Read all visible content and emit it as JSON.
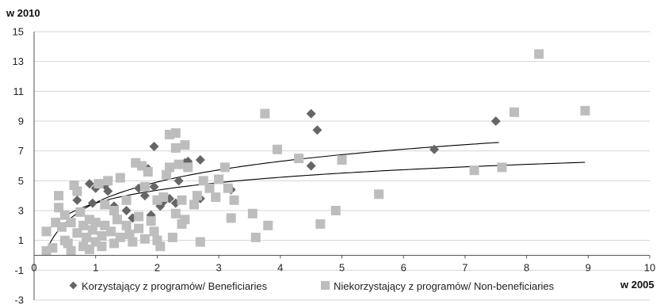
{
  "chart_data": {
    "type": "scatter",
    "ylabel": "w 2010",
    "xlabel": "w 2005",
    "xlim": [
      0,
      10
    ],
    "ylim": [
      -3,
      15
    ],
    "x_ticks": [
      0,
      1,
      2,
      3,
      4,
      5,
      6,
      7,
      8,
      9,
      10
    ],
    "y_ticks": [
      -3,
      -1,
      1,
      3,
      5,
      7,
      9,
      11,
      13,
      15
    ],
    "grid": "horizontal",
    "legend_position": "bottom",
    "colors": {
      "beneficiaries": "#666666",
      "non_beneficiaries": "#bdbdbd",
      "trend": "#000000",
      "grid": "#d4d4d4"
    },
    "series": [
      {
        "name": "Korzystający z programów/ Beneficiaries",
        "marker": "diamond",
        "color": "#666666",
        "points": [
          [
            0.7,
            3.7
          ],
          [
            0.9,
            4.8
          ],
          [
            0.95,
            3.5
          ],
          [
            1.0,
            4.5
          ],
          [
            1.1,
            4.8
          ],
          [
            1.15,
            4.7
          ],
          [
            1.2,
            4.3
          ],
          [
            1.3,
            3.3
          ],
          [
            1.5,
            3.0
          ],
          [
            1.6,
            2.5
          ],
          [
            1.7,
            4.5
          ],
          [
            1.8,
            4.0
          ],
          [
            1.85,
            5.8
          ],
          [
            1.9,
            2.7
          ],
          [
            1.95,
            4.6
          ],
          [
            1.95,
            7.3
          ],
          [
            2.05,
            3.3
          ],
          [
            2.1,
            3.6
          ],
          [
            2.2,
            3.8
          ],
          [
            2.3,
            3.5
          ],
          [
            2.35,
            5.0
          ],
          [
            2.45,
            6.2
          ],
          [
            2.5,
            6.3
          ],
          [
            2.7,
            6.4
          ],
          [
            2.7,
            3.8
          ],
          [
            3.2,
            4.4
          ],
          [
            4.5,
            9.5
          ],
          [
            4.5,
            6.0
          ],
          [
            4.6,
            8.4
          ],
          [
            6.5,
            7.1
          ],
          [
            7.5,
            9.0
          ]
        ]
      },
      {
        "name": "Niekorzystający z programów/ Non-beneficiaries",
        "marker": "square",
        "color": "#bdbdbd",
        "points": [
          [
            0.2,
            1.6
          ],
          [
            0.2,
            0.3
          ],
          [
            0.3,
            0.5
          ],
          [
            0.35,
            2.2
          ],
          [
            0.4,
            4.0
          ],
          [
            0.4,
            3.2
          ],
          [
            0.45,
            1.9
          ],
          [
            0.5,
            1.0
          ],
          [
            0.5,
            2.7
          ],
          [
            0.55,
            0.8
          ],
          [
            0.6,
            2.2
          ],
          [
            0.6,
            0.3
          ],
          [
            0.65,
            4.7
          ],
          [
            0.7,
            4.3
          ],
          [
            0.7,
            1.5
          ],
          [
            0.75,
            2.9
          ],
          [
            0.8,
            0.6
          ],
          [
            0.8,
            2.0
          ],
          [
            0.85,
            1.2
          ],
          [
            0.9,
            2.4
          ],
          [
            0.9,
            0.4
          ],
          [
            0.95,
            1.7
          ],
          [
            1.0,
            0.9
          ],
          [
            1.0,
            2.2
          ],
          [
            1.05,
            4.8
          ],
          [
            1.1,
            0.6
          ],
          [
            1.1,
            1.3
          ],
          [
            1.15,
            3.4
          ],
          [
            1.15,
            2.0
          ],
          [
            1.2,
            5.0
          ],
          [
            1.25,
            1.6
          ],
          [
            1.3,
            3.0
          ],
          [
            1.3,
            0.8
          ],
          [
            1.35,
            2.4
          ],
          [
            1.4,
            5.2
          ],
          [
            1.4,
            1.2
          ],
          [
            1.5,
            2.0
          ],
          [
            1.5,
            3.7
          ],
          [
            1.55,
            1.4
          ],
          [
            1.6,
            0.9
          ],
          [
            1.65,
            6.2
          ],
          [
            1.7,
            1.8
          ],
          [
            1.7,
            2.6
          ],
          [
            1.75,
            6.0
          ],
          [
            1.8,
            1.1
          ],
          [
            1.8,
            4.6
          ],
          [
            1.85,
            5.6
          ],
          [
            1.9,
            2.3
          ],
          [
            1.95,
            1.6
          ],
          [
            2.0,
            1.0
          ],
          [
            2.0,
            3.7
          ],
          [
            2.05,
            0.6
          ],
          [
            2.1,
            3.9
          ],
          [
            2.15,
            5.4
          ],
          [
            2.2,
            8.1
          ],
          [
            2.2,
            5.9
          ],
          [
            2.25,
            1.2
          ],
          [
            2.3,
            8.2
          ],
          [
            2.3,
            7.2
          ],
          [
            2.3,
            2.8
          ],
          [
            2.35,
            6.1
          ],
          [
            2.4,
            3.7
          ],
          [
            2.4,
            2.1
          ],
          [
            2.45,
            7.4
          ],
          [
            2.45,
            2.4
          ],
          [
            2.5,
            5.9
          ],
          [
            2.6,
            3.4
          ],
          [
            2.65,
            4.0
          ],
          [
            2.7,
            0.9
          ],
          [
            2.75,
            5.0
          ],
          [
            2.85,
            4.5
          ],
          [
            2.95,
            3.9
          ],
          [
            3.0,
            5.1
          ],
          [
            3.1,
            5.9
          ],
          [
            3.15,
            4.5
          ],
          [
            3.2,
            2.5
          ],
          [
            3.25,
            3.7
          ],
          [
            3.55,
            2.8
          ],
          [
            3.6,
            1.2
          ],
          [
            3.75,
            9.5
          ],
          [
            3.8,
            2.0
          ],
          [
            3.95,
            7.1
          ],
          [
            4.3,
            6.5
          ],
          [
            4.65,
            2.1
          ],
          [
            4.9,
            3.0
          ],
          [
            5.0,
            6.4
          ],
          [
            5.6,
            4.1
          ],
          [
            7.15,
            5.7
          ],
          [
            7.6,
            5.9
          ],
          [
            7.8,
            9.6
          ],
          [
            8.2,
            13.5
          ],
          [
            8.95,
            9.7
          ]
        ]
      }
    ],
    "trend_curves": [
      {
        "type": "log",
        "a": 3.53,
        "b": 2.0,
        "x_range": [
          0.2,
          7.55
        ]
      },
      {
        "type": "log",
        "a": 3.5,
        "b": 1.25,
        "x_range": [
          0.2,
          8.95
        ]
      }
    ]
  }
}
